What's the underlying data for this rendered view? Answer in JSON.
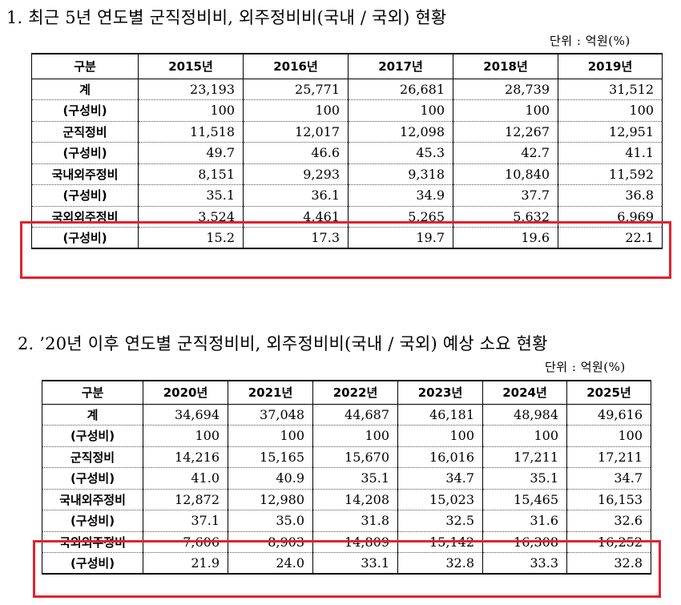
{
  "section1": {
    "title": "1. 최근 5년 연도별 군직정비비, 외주정비비(국내 / 국외) 현황",
    "unit": "단위 : 억원(%)",
    "header": [
      "구분",
      "2015년",
      "2016년",
      "2017년",
      "2018년",
      "2019년"
    ],
    "rows": [
      {
        "label": "계",
        "values": [
          "23,193",
          "25,771",
          "26,681",
          "28,739",
          "31,512"
        ]
      },
      {
        "label": "(구성비)",
        "values": [
          "100",
          "100",
          "100",
          "100",
          "100"
        ]
      },
      {
        "label": "군직정비",
        "values": [
          "11,518",
          "12,017",
          "12,098",
          "12,267",
          "12,951"
        ]
      },
      {
        "label": "(구성비)",
        "values": [
          "49.7",
          "46.6",
          "45.3",
          "42.7",
          "41.1"
        ]
      },
      {
        "label": "국내외주정비",
        "values": [
          "8,151",
          "9,293",
          "9,318",
          "10,840",
          "11,592"
        ]
      },
      {
        "label": "(구성비)",
        "values": [
          "35.1",
          "36.1",
          "34.9",
          "37.7",
          "36.8"
        ]
      },
      {
        "label": "국외외주정비",
        "values": [
          "3,524",
          "4,461",
          "5,265",
          "5,632",
          "6,969"
        ]
      },
      {
        "label": "(구성비)",
        "values": [
          "15.2",
          "17.3",
          "19.7",
          "19.6",
          "22.1"
        ]
      }
    ]
  },
  "section2": {
    "title": "2. ’20년 이후 연도별 군직정비비, 외주정비비(국내 / 국외) 예상 소요 현황",
    "unit": "단위 : 억원(%)",
    "header": [
      "구분",
      "2020년",
      "2021년",
      "2022년",
      "2023년",
      "2024년",
      "2025년"
    ],
    "rows": [
      {
        "label": "계",
        "values": [
          "34,694",
          "37,048",
          "44,687",
          "46,181",
          "48,984",
          "49,616"
        ]
      },
      {
        "label": "(구성비)",
        "values": [
          "100",
          "100",
          "100",
          "100",
          "100",
          "100"
        ]
      },
      {
        "label": "군직정비",
        "values": [
          "14,216",
          "15,165",
          "15,670",
          "16,016",
          "17,211",
          "17,211"
        ]
      },
      {
        "label": "(구성비)",
        "values": [
          "41.0",
          "40.9",
          "35.1",
          "34.7",
          "35.1",
          "34.7"
        ]
      },
      {
        "label": "국내외주정비",
        "values": [
          "12,872",
          "12,980",
          "14,208",
          "15,023",
          "15,465",
          "16,153"
        ]
      },
      {
        "label": "(구성비)",
        "values": [
          "37.1",
          "35.0",
          "31.8",
          "32.5",
          "31.6",
          "32.6"
        ]
      },
      {
        "label": "국외외주정비",
        "values": [
          "7,606",
          "8,903",
          "14,809",
          "15,142",
          "16,308",
          "16,252"
        ]
      },
      {
        "label": "(구성비)",
        "values": [
          "21.9",
          "24.0",
          "33.1",
          "32.8",
          "33.3",
          "32.8"
        ]
      }
    ]
  },
  "colors": {
    "highlight": "#e0232f"
  }
}
